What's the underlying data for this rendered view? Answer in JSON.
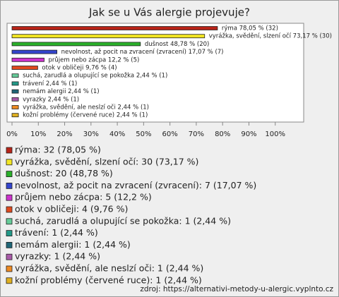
{
  "chart_data": {
    "type": "hbar",
    "title": "Jak se u Vás alergie projevuje?",
    "categories": [
      "rýma",
      "vyrážka, svědění, slzení očí",
      "dušnost",
      "nevolnost, až pocit na zvracení (zvracení)",
      "průjem nebo zácpa",
      "otok v obličeji",
      "suchá, zarudlá a olupující se pokožka",
      "trávení",
      "nemám alergii",
      "vyrazky",
      "vyrážka, svědění, ale neslzí oči",
      "kožní problémy (červené ruce)"
    ],
    "values": [
      78.05,
      73.17,
      48.78,
      17.07,
      12.2,
      9.76,
      2.44,
      2.44,
      2.44,
      2.44,
      2.44,
      2.44
    ],
    "value_labels": [
      "rýma 78,05 % (32)",
      "vyrážka, svědění, slzení očí 73,17 % (30)",
      "dušnost 48,78 % (20)",
      "nevolnost, až pocit na zvracení (zvracení) 17,07 % (7)",
      "průjem nebo zácpa 12,2 % (5)",
      "otok v obličeji 9,76 % (4)",
      "suchá, zarudlá a olupující se pokožka 2,44 % (1)",
      "trávení 2,44 % (1)",
      "nemám alergii 2,44 % (1)",
      "vyrazky 2,44 % (1)",
      "vyrážka, svědění, ale neslzí oči 2,44 % (1)",
      "kožní problémy (červené ruce) 2,44 % (1)"
    ],
    "legend_labels": [
      "rýma: 32 (78,05 %)",
      "vyrážka, svědění, slzení očí: 30 (73,17 %)",
      "dušnost: 20 (48,78 %)",
      "nevolnost, až pocit na zvracení (zvracení): 7 (17,07 %)",
      "průjem nebo zácpa: 5 (12,2 %)",
      "otok v obličeji: 4 (9,76 %)",
      "suchá, zarudlá a olupující se pokožka: 1 (2,44 %)",
      "trávení: 1 (2,44 %)",
      "nemám alergii: 1 (2,44 %)",
      "vyrazky: 1 (2,44 %)",
      "vyrážka, svědění, ale neslzí oči: 1 (2,44 %)",
      "kožní problémy (červené ruce): 1 (2,44 %)"
    ],
    "colors": [
      "#b82418",
      "#f2e624",
      "#2ab02a",
      "#3344cc",
      "#cc33cc",
      "#e04a1e",
      "#66cc99",
      "#229988",
      "#1f6677",
      "#a85aa8",
      "#ee8a22",
      "#e0b020"
    ],
    "xlim": [
      0,
      110
    ],
    "xticks": [
      {
        "value": 0,
        "label": "0%"
      },
      {
        "value": 10,
        "label": "10%"
      },
      {
        "value": 20,
        "label": "20%"
      },
      {
        "value": 30,
        "label": "30%"
      },
      {
        "value": 40,
        "label": "40%"
      },
      {
        "value": 50,
        "label": "50%"
      },
      {
        "value": 60,
        "label": "60%"
      },
      {
        "value": 70,
        "label": "70%"
      },
      {
        "value": 80,
        "label": "80%"
      },
      {
        "value": 90,
        "label": "90%"
      },
      {
        "value": 100,
        "label": "100%"
      }
    ],
    "grid": false,
    "source": "zdroj:  https://alternativi-metody-u-alergic.vyplnto.cz"
  }
}
